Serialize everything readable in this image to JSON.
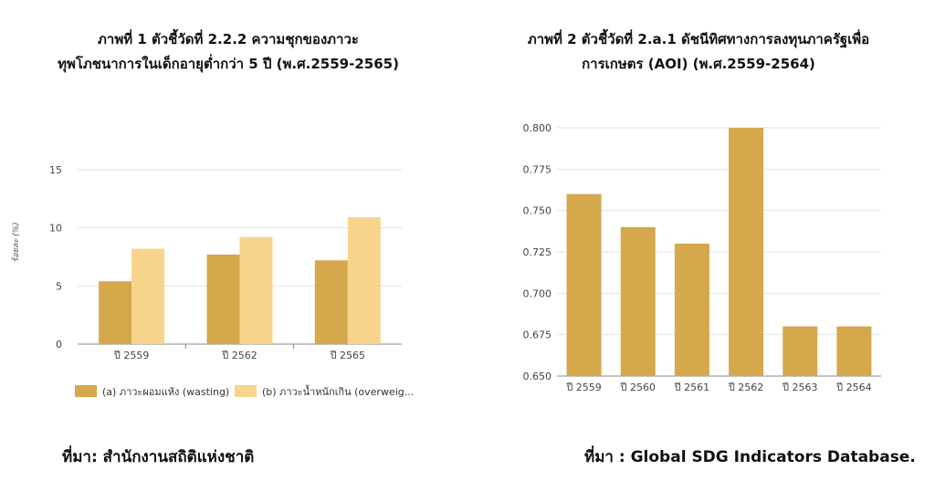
{
  "chart_data": [
    {
      "type": "bar",
      "title": "ภาพที่ 1 ตัวชี้วัดที่ 2.2.2 ความชุกของภาวะ ทุพโภชนาการในเด็กอายุต่ำกว่า 5 ปี (พ.ศ.2559-2565)",
      "title_lines": [
        "ภาพที่ 1 ตัวชี้วัดที่ 2.2.2 ความชุกของภาวะ",
        "ทุพโภชนาการในเด็กอายุต่ำกว่า 5 ปี (พ.ศ.2559-2565)"
      ],
      "ylabel": "ร้อยละ (%)",
      "xlabel": "",
      "categories": [
        "ปี 2559",
        "ปี 2562",
        "ปี 2565"
      ],
      "series": [
        {
          "name": "(a) ภาวะผอมแห้ง (wasting)",
          "values": [
            5.4,
            7.7,
            7.2
          ],
          "color": "#d4a84b"
        },
        {
          "name": "(b) ภาวะน้ำหนักเกิน (overweig...",
          "values": [
            8.2,
            9.2,
            10.9
          ],
          "color": "#f6d48a"
        }
      ],
      "ylim": [
        0,
        17.5
      ],
      "yticks": [
        "0",
        "5",
        "10",
        "15"
      ],
      "grid": true,
      "legend": "bottom",
      "source": "ที่มา: สำนักงานสถิติแห่งชาติ"
    },
    {
      "type": "bar",
      "title": "ภาพที่ 2 ตัวชี้วัดที่ 2.a.1 ดัชนีทิศทางการลงทุนภาครัฐเพื่อ การเกษตร (AOI) (พ.ศ.2559-2564)",
      "title_lines": [
        "ภาพที่ 2 ตัวชี้วัดที่ 2.a.1 ดัชนีทิศทางการลงทุนภาครัฐเพื่อ",
        "การเกษตร (AOI) (พ.ศ.2559-2564)"
      ],
      "xlabel": "",
      "ylabel": "",
      "categories": [
        "ปี 2559",
        "ปี 2560",
        "ปี 2561",
        "ปี 2562",
        "ปี 2563",
        "ปี 2564"
      ],
      "values": [
        0.76,
        0.74,
        0.73,
        0.8,
        0.68,
        0.68
      ],
      "color": "#d4a84b",
      "ylim": [
        0.65,
        0.8
      ],
      "yticks": [
        "0.650",
        "0.675",
        "0.700",
        "0.725",
        "0.750",
        "0.775",
        "0.800"
      ],
      "grid": true,
      "source": "ที่มา : Global SDG Indicators Database."
    }
  ]
}
